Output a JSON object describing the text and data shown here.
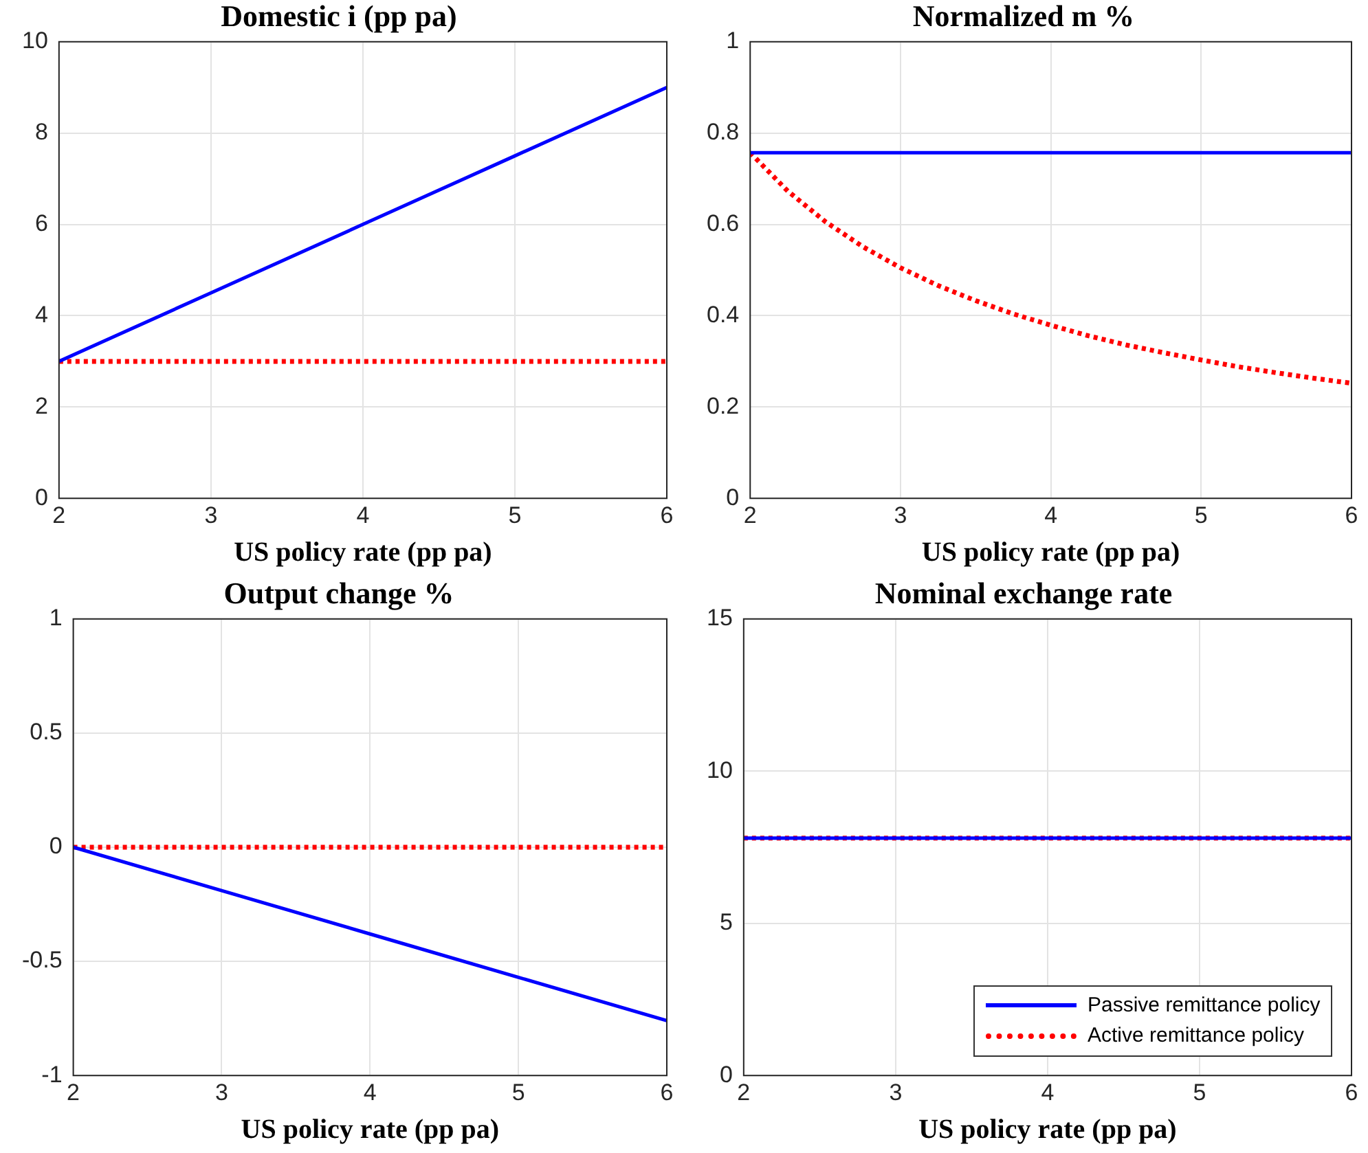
{
  "chart_data": [
    {
      "type": "line",
      "title": "Domestic i (pp pa)",
      "xlabel": "US policy rate (pp pa)",
      "x": [
        2,
        3,
        4,
        5,
        6
      ],
      "xlim": [
        2,
        6
      ],
      "xticks": [
        2,
        3,
        4,
        5,
        6
      ],
      "ylim": [
        0,
        10
      ],
      "yticks": [
        0,
        2,
        4,
        6,
        8,
        10
      ],
      "grid": true,
      "legend": false,
      "marker": "none",
      "series": [
        {
          "color": "#0000ff",
          "line_style": "solid",
          "values": [
            3,
            4.5,
            6,
            7.5,
            9
          ]
        },
        {
          "color": "#ff0000",
          "line_style": "dotted",
          "values": [
            3,
            3,
            3,
            3,
            3
          ]
        }
      ]
    },
    {
      "type": "line",
      "title": "Normalized m %",
      "xlabel": "US policy rate (pp pa)",
      "x": [
        2,
        2.25,
        2.5,
        2.75,
        3,
        3.25,
        3.5,
        3.75,
        4,
        4.25,
        4.5,
        4.75,
        5,
        5.25,
        5.5,
        5.75,
        6
      ],
      "xlim": [
        2,
        6
      ],
      "xticks": [
        2,
        3,
        4,
        5,
        6
      ],
      "ylim": [
        0,
        1
      ],
      "yticks": [
        0,
        0.2,
        0.4,
        0.6,
        0.8,
        1
      ],
      "grid": true,
      "legend": false,
      "marker": "none",
      "series": [
        {
          "color": "#0000ff",
          "line_style": "solid",
          "values": [
            0.757,
            0.757,
            0.757,
            0.757,
            0.757,
            0.757,
            0.757,
            0.757,
            0.757,
            0.757,
            0.757,
            0.757,
            0.757,
            0.757,
            0.757,
            0.757,
            0.757
          ]
        },
        {
          "color": "#ff0000",
          "line_style": "dotted",
          "values": [
            0.757,
            0.673,
            0.606,
            0.551,
            0.505,
            0.466,
            0.433,
            0.404,
            0.379,
            0.356,
            0.336,
            0.319,
            0.303,
            0.288,
            0.275,
            0.263,
            0.252
          ]
        }
      ]
    },
    {
      "type": "line",
      "title": "Output change %",
      "xlabel": "US policy rate (pp pa)",
      "x": [
        2,
        3,
        4,
        5,
        6
      ],
      "xlim": [
        2,
        6
      ],
      "xticks": [
        2,
        3,
        4,
        5,
        6
      ],
      "ylim": [
        -1,
        1
      ],
      "yticks": [
        -1,
        -0.5,
        0,
        0.5,
        1
      ],
      "grid": true,
      "legend": false,
      "marker": "none",
      "series": [
        {
          "color": "#0000ff",
          "line_style": "solid",
          "values": [
            0,
            -0.19,
            -0.38,
            -0.57,
            -0.76
          ]
        },
        {
          "color": "#ff0000",
          "line_style": "dotted",
          "values": [
            0,
            0,
            0,
            0,
            0
          ]
        }
      ]
    },
    {
      "type": "line",
      "title": "Nominal exchange rate",
      "xlabel": "US policy rate (pp pa)",
      "x": [
        2,
        3,
        4,
        5,
        6
      ],
      "xlim": [
        2,
        6
      ],
      "xticks": [
        2,
        3,
        4,
        5,
        6
      ],
      "ylim": [
        0,
        15
      ],
      "yticks": [
        0,
        5,
        10,
        15
      ],
      "grid": true,
      "legend": "bottom right",
      "marker": "none",
      "series": [
        {
          "name": "Passive remittance policy",
          "color": "#0000ff",
          "line_style": "solid",
          "values": [
            7.8,
            7.8,
            7.8,
            7.8,
            7.8
          ]
        },
        {
          "name": "Active remittance policy",
          "color": "#ff0000",
          "line_style": "dotted",
          "values": [
            7.8,
            7.8,
            7.8,
            7.8,
            7.8
          ]
        }
      ]
    }
  ]
}
